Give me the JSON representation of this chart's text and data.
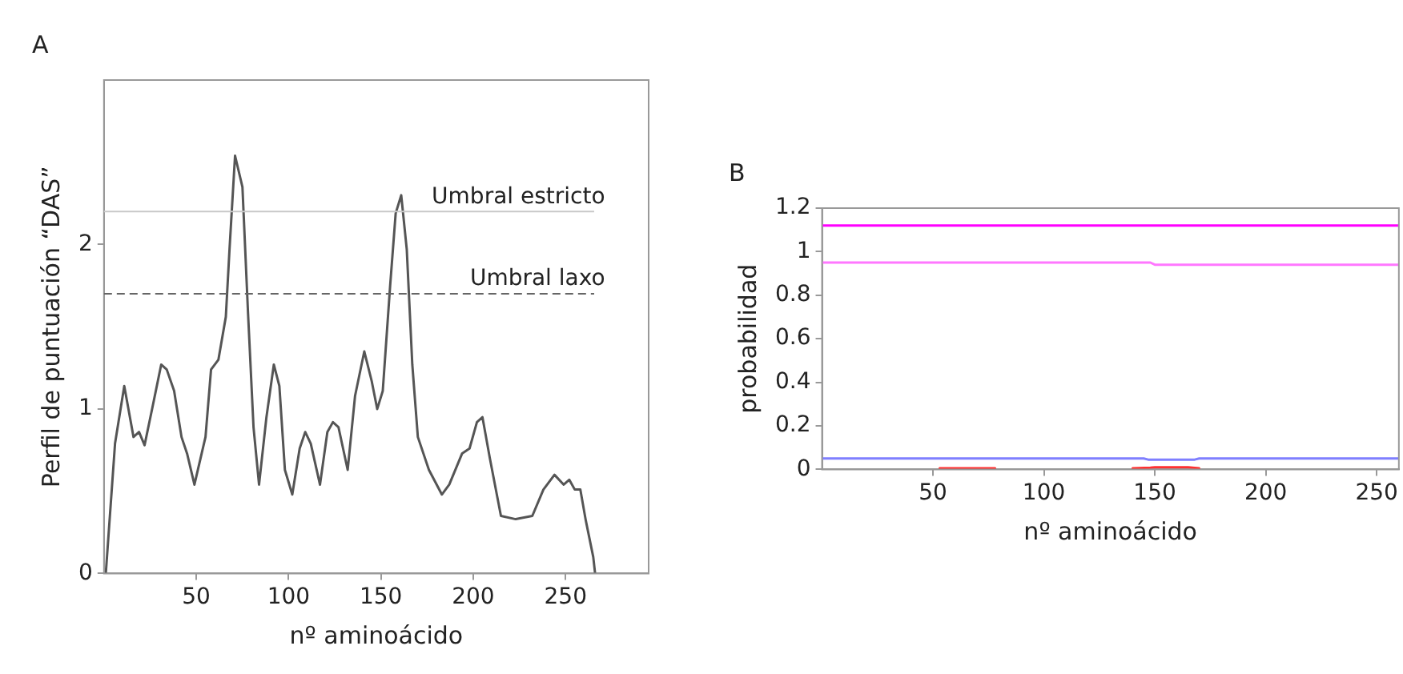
{
  "chart_data": [
    {
      "type": "line",
      "title": "A",
      "xlabel": "nº aminoácido",
      "ylabel": "Perfil de puntuación “DAS”",
      "xlim": [
        0,
        295
      ],
      "ylim": [
        0,
        3
      ],
      "xticks": [
        50,
        100,
        150,
        200,
        250
      ],
      "yticks": [
        0,
        1,
        2
      ],
      "grid": false,
      "legend": false,
      "marker": "none",
      "series": [
        {
          "color": "#555555",
          "x": [
            1,
            6,
            11,
            16,
            19,
            22,
            27,
            31,
            34,
            38,
            42,
            45,
            49,
            55,
            58,
            62,
            66,
            68,
            71,
            75,
            78,
            81,
            84,
            88,
            92,
            95,
            98,
            102,
            106,
            109,
            112,
            117,
            121,
            124,
            127,
            132,
            136,
            141,
            145,
            148,
            151,
            155,
            158,
            161,
            164,
            167,
            170,
            176,
            183,
            187,
            194,
            198,
            202,
            205,
            209,
            215,
            223,
            232,
            238,
            244,
            249,
            252,
            255,
            258,
            261,
            265,
            266
          ],
          "values": [
            0,
            0.79,
            1.14,
            0.83,
            0.86,
            0.78,
            1.05,
            1.27,
            1.24,
            1.11,
            0.83,
            0.73,
            0.54,
            0.83,
            1.24,
            1.3,
            1.56,
            1.97,
            2.54,
            2.35,
            1.59,
            0.89,
            0.54,
            0.95,
            1.27,
            1.14,
            0.63,
            0.48,
            0.76,
            0.86,
            0.79,
            0.54,
            0.86,
            0.92,
            0.89,
            0.63,
            1.08,
            1.35,
            1.17,
            1.0,
            1.11,
            1.75,
            2.19,
            2.3,
            1.97,
            1.27,
            0.83,
            0.63,
            0.48,
            0.54,
            0.73,
            0.76,
            0.92,
            0.95,
            0.7,
            0.35,
            0.33,
            0.35,
            0.51,
            0.6,
            0.54,
            0.57,
            0.51,
            0.51,
            0.32,
            0.1,
            0
          ]
        }
      ],
      "ref_lines": [
        {
          "axis": "y",
          "value": 2.2,
          "label": "Umbral estricto",
          "color": "#c8c8c8",
          "line_style": "solid"
        },
        {
          "axis": "y",
          "value": 1.7,
          "label": "Umbral laxo",
          "color": "#666666",
          "line_style": "dashed"
        }
      ]
    },
    {
      "type": "line",
      "title": "B",
      "xlabel": "nº aminoácido",
      "ylabel": "probabilidad",
      "xlim": [
        0,
        260
      ],
      "ylim": [
        0,
        1.2
      ],
      "xticks": [
        50,
        100,
        150,
        200,
        250
      ],
      "yticks": [
        0,
        0.2,
        0.4,
        0.6,
        0.8,
        1,
        1.2
      ],
      "grid": false,
      "legend": false,
      "marker": "none",
      "series": [
        {
          "color": "#ff00ff",
          "x": [
            0,
            260
          ],
          "values": [
            1.12,
            1.12
          ]
        },
        {
          "color": "#ff77ff",
          "x": [
            0,
            148,
            150,
            260
          ],
          "values": [
            0.95,
            0.95,
            0.94,
            0.94
          ]
        },
        {
          "color": "#7f7fff",
          "x": [
            0,
            145,
            147,
            168,
            170,
            260
          ],
          "values": [
            0.05,
            0.05,
            0.045,
            0.045,
            0.05,
            0.05
          ]
        },
        {
          "color": "#ff3030",
          "x": [
            53,
            78,
            79,
            140,
            148,
            150,
            165,
            170
          ],
          "values": [
            0.005,
            0.005,
            null,
            0.005,
            0.008,
            0.01,
            0.01,
            0.005
          ]
        }
      ]
    }
  ]
}
